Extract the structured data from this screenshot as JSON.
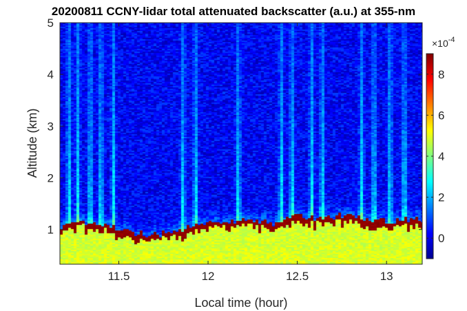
{
  "chart_data": {
    "type": "heatmap",
    "title": "20200811 CCNY-lidar total attenuated backscatter (a.u.) at 355-nm",
    "xlabel": "Local time (hour)",
    "ylabel": "Altitude (km)",
    "xlim": [
      11.17,
      13.2
    ],
    "ylim": [
      0.33,
      5.0
    ],
    "x_ticks": [
      11.5,
      12,
      12.5,
      13
    ],
    "x_tick_labels": [
      "11.5",
      "12",
      "12.5",
      "13"
    ],
    "y_ticks": [
      1,
      2,
      3,
      4,
      5
    ],
    "y_tick_labels": [
      "1",
      "2",
      "3",
      "4",
      "5"
    ],
    "colorbar": {
      "colormap": "jet",
      "clim": [
        -1.0,
        9.0
      ],
      "ticks": [
        0,
        2,
        4,
        6,
        8
      ],
      "tick_labels": [
        "0",
        "2",
        "4",
        "6",
        "8"
      ],
      "multiplier": "×10",
      "exponent": "-4"
    },
    "layers": {
      "near_surface_value": 5.0,
      "cloud_top_value": 9.0,
      "free_troposphere_value": 0.2
    },
    "boundary_layer_top_km": {
      "time": [
        11.17,
        11.3,
        11.45,
        11.55,
        11.65,
        11.7,
        11.8,
        11.9,
        12.0,
        12.1,
        12.2,
        12.3,
        12.4,
        12.5,
        12.6,
        12.7,
        12.8,
        12.9,
        13.0,
        13.1,
        13.2
      ],
      "altitude": [
        1.05,
        1.15,
        1.05,
        0.95,
        0.92,
        0.9,
        0.95,
        1.05,
        1.12,
        1.15,
        1.2,
        1.15,
        1.1,
        1.3,
        1.2,
        1.25,
        1.3,
        1.2,
        1.15,
        1.2,
        1.2
      ]
    },
    "clear_streaks_time": [
      11.22,
      11.27,
      11.34,
      11.4,
      11.47,
      11.86,
      11.93,
      12.17,
      12.41,
      12.47,
      12.58,
      12.64,
      12.86,
      12.93,
      13.02,
      13.1
    ]
  }
}
